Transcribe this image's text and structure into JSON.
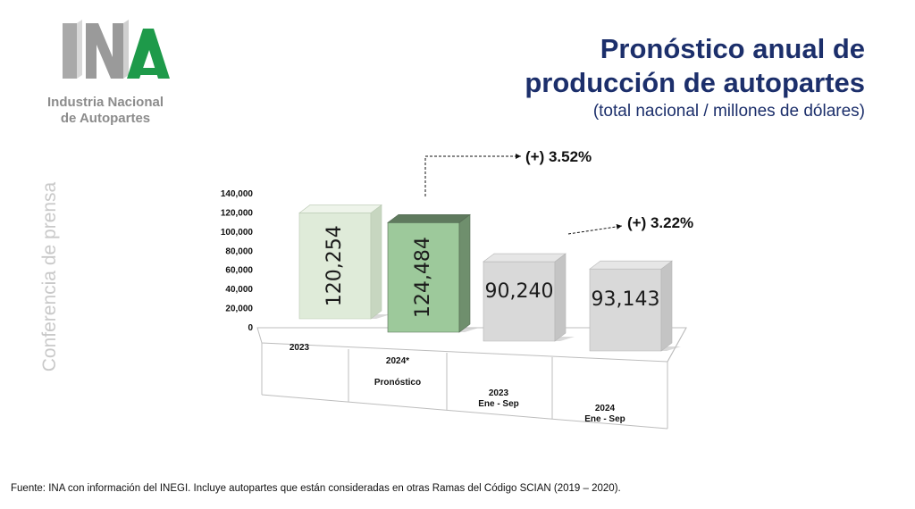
{
  "logo": {
    "line1": "Industria Nacional",
    "line2": "de Autopartes"
  },
  "header": {
    "title_line1": "Pronóstico anual de",
    "title_line2": "producción de autopartes",
    "subtitle": "(total nacional / millones de dólares)"
  },
  "side_label": "Conferencia de prensa",
  "footer": "Fuente: INA con información del INEGI. Incluye autopartes que están consideradas en otras Ramas del Código SCIAN (2019 – 2020).",
  "colors": {
    "title": "#1c2f6b",
    "logo_green": "#1e9a4a",
    "bar_light_green": "#dce9d6",
    "bar_green": "#9bc89a",
    "bar_gray": "#d9d9d9"
  },
  "chart_data": {
    "type": "bar",
    "categories": [
      [
        "2023"
      ],
      [
        "2024*",
        "Pronóstico"
      ],
      [
        "2023",
        "Ene - Sep"
      ],
      [
        "2024",
        "Ene - Sep"
      ]
    ],
    "values": [
      120254,
      124484,
      90240,
      93143
    ],
    "value_labels": [
      "120,254",
      "124,484",
      "90,240",
      "93,143"
    ],
    "ylim": [
      0,
      140000
    ],
    "yticks": [
      0,
      20000,
      40000,
      60000,
      80000,
      100000,
      120000,
      140000
    ],
    "ytick_labels": [
      "0",
      "20,000",
      "40,000",
      "60,000",
      "80,000",
      "100,000",
      "120,000",
      "140,000"
    ],
    "annotations": [
      "(+) 3.52%",
      "(+) 3.22%"
    ],
    "grid": false,
    "style": "3d-columns"
  }
}
